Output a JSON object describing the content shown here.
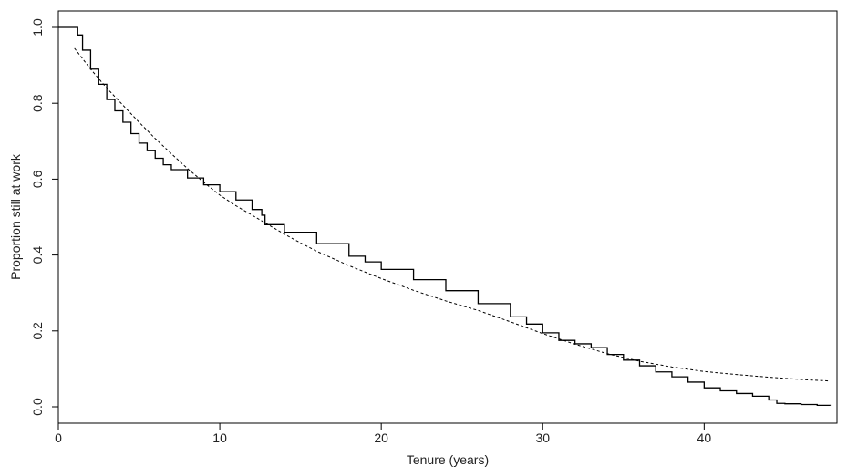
{
  "chart_data": {
    "type": "line",
    "title": "",
    "xlabel": "Tenure (years)",
    "ylabel": "Proportion still at work",
    "xlim": [
      0,
      48
    ],
    "ylim": [
      0,
      1.0
    ],
    "xticks": [
      0,
      10,
      20,
      30,
      40
    ],
    "xtick_labels": [
      "0",
      "10",
      "20",
      "30",
      "40"
    ],
    "yticks": [
      0.0,
      0.2,
      0.4,
      0.6,
      0.8,
      1.0
    ],
    "ytick_labels": [
      "0.0",
      "0.2",
      "0.4",
      "0.6",
      "0.8",
      "1.0"
    ],
    "grid": false,
    "legend": null,
    "series": [
      {
        "style": "solid",
        "color": "#000000",
        "step": true,
        "points": [
          [
            0,
            1.0
          ],
          [
            1.0,
            1.0
          ],
          [
            1.2,
            0.98
          ],
          [
            1.5,
            0.94
          ],
          [
            2.0,
            0.89
          ],
          [
            2.5,
            0.85
          ],
          [
            3.0,
            0.81
          ],
          [
            3.5,
            0.78
          ],
          [
            4.0,
            0.75
          ],
          [
            4.5,
            0.72
          ],
          [
            5.0,
            0.695
          ],
          [
            5.5,
            0.675
          ],
          [
            6.0,
            0.655
          ],
          [
            6.5,
            0.638
          ],
          [
            7.0,
            0.625
          ],
          [
            8.0,
            0.603
          ],
          [
            9.0,
            0.585
          ],
          [
            10.0,
            0.567
          ],
          [
            11.0,
            0.545
          ],
          [
            12.0,
            0.52
          ],
          [
            12.6,
            0.505
          ],
          [
            12.8,
            0.48
          ],
          [
            14.0,
            0.46
          ],
          [
            16.0,
            0.43
          ],
          [
            18.0,
            0.397
          ],
          [
            19.0,
            0.382
          ],
          [
            20.0,
            0.362
          ],
          [
            22.0,
            0.335
          ],
          [
            24.0,
            0.306
          ],
          [
            26.0,
            0.272
          ],
          [
            28.0,
            0.237
          ],
          [
            29.0,
            0.218
          ],
          [
            30.0,
            0.195
          ],
          [
            31.0,
            0.175
          ],
          [
            32.0,
            0.166
          ],
          [
            33.0,
            0.156
          ],
          [
            34.0,
            0.138
          ],
          [
            35.0,
            0.123
          ],
          [
            36.0,
            0.108
          ],
          [
            37.0,
            0.092
          ],
          [
            38.0,
            0.079
          ],
          [
            39.0,
            0.065
          ],
          [
            40.0,
            0.05
          ],
          [
            41.0,
            0.042
          ],
          [
            42.0,
            0.035
          ],
          [
            43.0,
            0.028
          ],
          [
            44.0,
            0.018
          ],
          [
            44.5,
            0.009
          ],
          [
            45.0,
            0.008
          ],
          [
            46.0,
            0.006
          ],
          [
            47.0,
            0.004
          ],
          [
            47.8,
            0.003
          ]
        ]
      },
      {
        "style": "dotted",
        "color": "#000000",
        "step": false,
        "points": [
          [
            1.0,
            0.945
          ],
          [
            2.0,
            0.89
          ],
          [
            3.0,
            0.84
          ],
          [
            4.0,
            0.795
          ],
          [
            5.0,
            0.75
          ],
          [
            6.0,
            0.707
          ],
          [
            7.0,
            0.667
          ],
          [
            8.0,
            0.628
          ],
          [
            9.0,
            0.592
          ],
          [
            10.0,
            0.558
          ],
          [
            11.0,
            0.53
          ],
          [
            12.0,
            0.505
          ],
          [
            13.0,
            0.48
          ],
          [
            14.0,
            0.455
          ],
          [
            15.0,
            0.432
          ],
          [
            16.0,
            0.41
          ],
          [
            18.0,
            0.372
          ],
          [
            20.0,
            0.338
          ],
          [
            22.0,
            0.307
          ],
          [
            24.0,
            0.279
          ],
          [
            26.0,
            0.254
          ],
          [
            28.0,
            0.224
          ],
          [
            30.0,
            0.193
          ],
          [
            32.0,
            0.165
          ],
          [
            34.0,
            0.14
          ],
          [
            36.0,
            0.12
          ],
          [
            38.0,
            0.105
          ],
          [
            40.0,
            0.093
          ],
          [
            42.0,
            0.085
          ],
          [
            44.0,
            0.078
          ],
          [
            46.0,
            0.072
          ],
          [
            47.8,
            0.068
          ]
        ]
      }
    ]
  }
}
